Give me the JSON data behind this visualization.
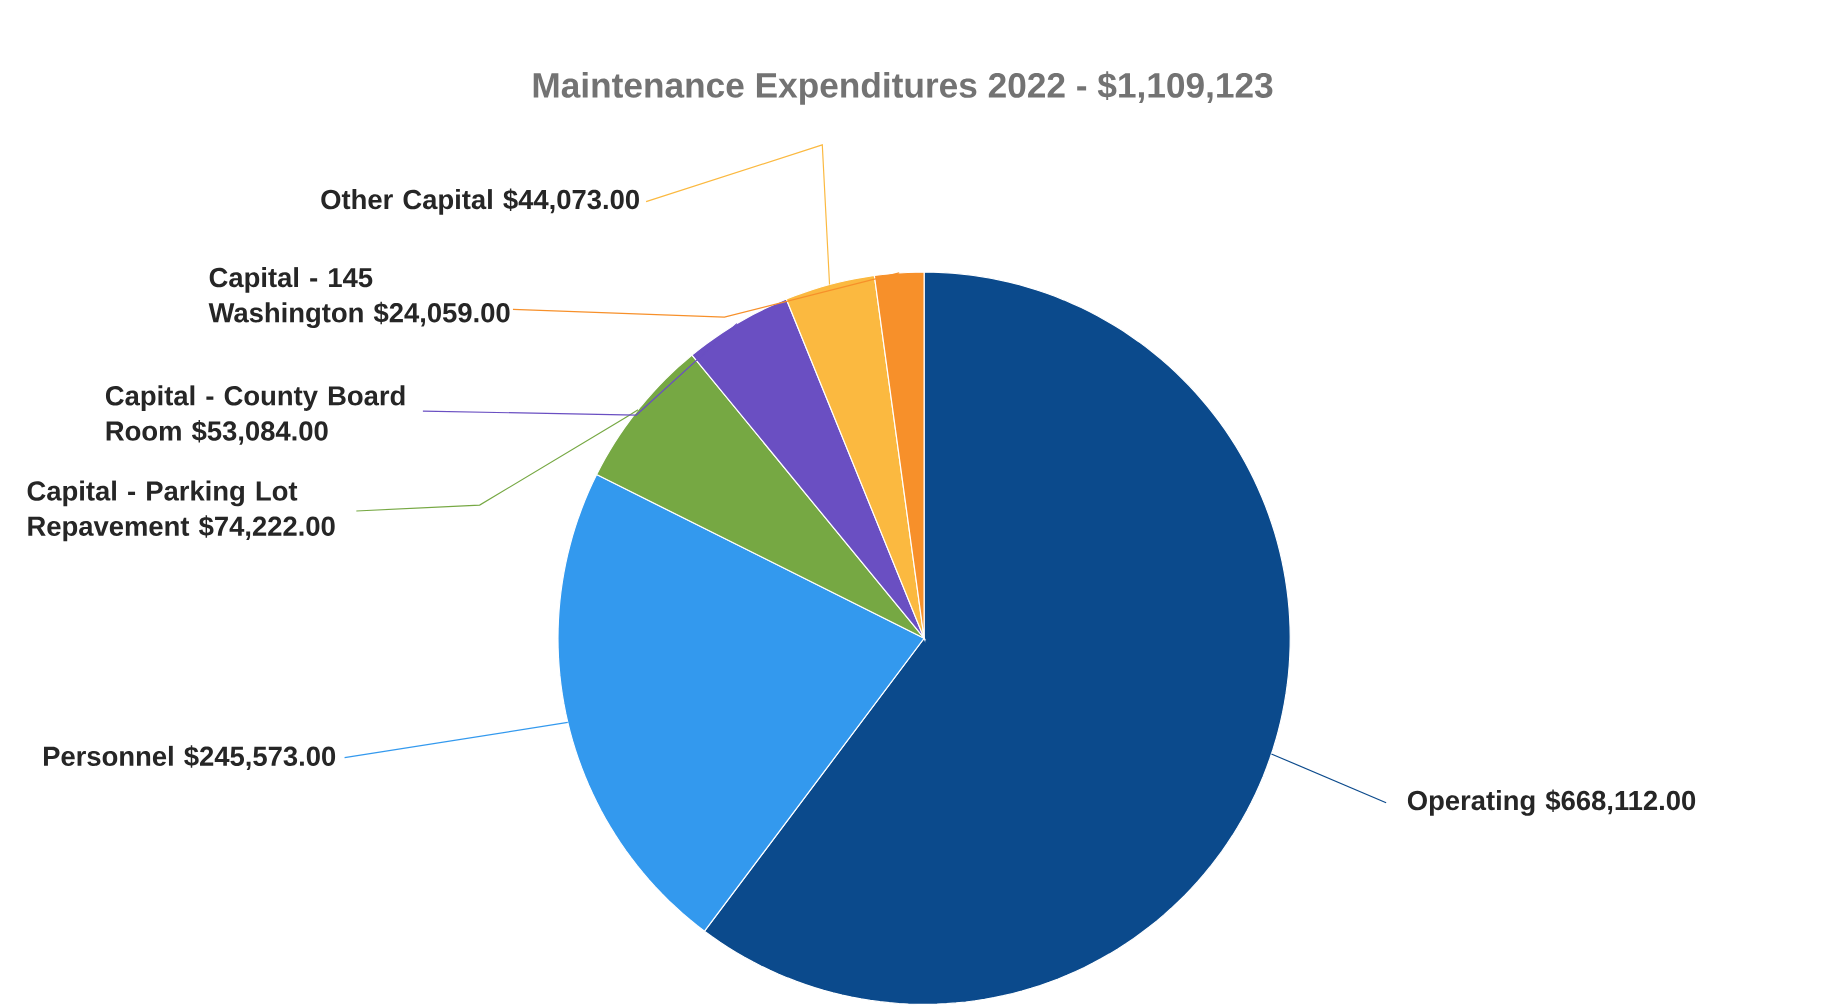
{
  "chart_data": {
    "type": "pie",
    "title": "Maintenance Expenditures 2022 - $1,109,123",
    "categories": [
      "Operating",
      "Personnel",
      "Capital - Parking Lot Repavement",
      "Capital - County Board Room",
      "Other Capital",
      "Capital - 145 Washington"
    ],
    "values": [
      668112,
      245573,
      74222,
      53084,
      44073,
      24059
    ],
    "value_labels": [
      "$668,112.00",
      "$245,573.00",
      "$74,222.00",
      "$53,084.00",
      "$44,073.00",
      "$24,059.00"
    ],
    "colors": [
      "#0b4a8c",
      "#3399ee",
      "#76a843",
      "#6a4fc2",
      "#fbb940",
      "#f7902a"
    ]
  }
}
